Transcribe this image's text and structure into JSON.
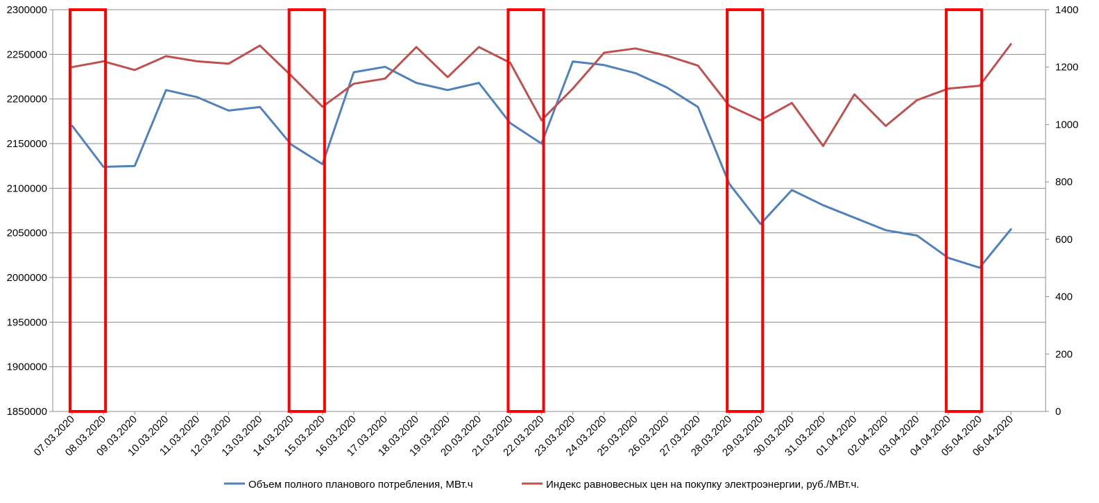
{
  "chart_data": {
    "type": "line",
    "categories": [
      "07.03.2020",
      "08.03.2020",
      "09.03.2020",
      "10.03.2020",
      "11.03.2020",
      "12.03.2020",
      "13.03.2020",
      "14.03.2020",
      "15.03.2020",
      "16.03.2020",
      "17.03.2020",
      "18.03.2020",
      "19.03.2020",
      "20.03.2020",
      "21.03.2020",
      "22.03.2020",
      "23.03.2020",
      "24.03.2020",
      "25.03.2020",
      "26.03.2020",
      "27.03.2020",
      "28.03.2020",
      "29.03.2020",
      "30.03.2020",
      "31.03.2020",
      "01.04.2020",
      "02.04.2020",
      "03.04.2020",
      "04.04.2020",
      "05.04.2020",
      "06.04.2020"
    ],
    "series": [
      {
        "name": "Объем полного планового потребления, МВт.ч",
        "axis": "left",
        "color": "#4F81BD",
        "values": [
          2170000,
          2124000,
          2125000,
          2210000,
          2202000,
          2187000,
          2191000,
          2149000,
          2127000,
          2230000,
          2236000,
          2218000,
          2210000,
          2218000,
          2173000,
          2150000,
          2242000,
          2238000,
          2229000,
          2213000,
          2191000,
          2105000,
          2060000,
          2098000,
          2081000,
          2067000,
          2053000,
          2047000,
          2022000,
          2011000,
          2054000
        ]
      },
      {
        "name": "Индекс равновесных цен на покупку электроэнергии, руб./МВт.ч.",
        "axis": "right",
        "color": "#C0504D",
        "values": [
          1200,
          1220,
          1190,
          1238,
          1220,
          1212,
          1275,
          1170,
          1062,
          1142,
          1160,
          1270,
          1165,
          1270,
          1215,
          1015,
          1125,
          1250,
          1265,
          1240,
          1205,
          1065,
          1015,
          1075,
          925,
          1105,
          995,
          1085,
          1125,
          1135,
          1280
        ]
      }
    ],
    "left_axis": {
      "min": 1850000,
      "max": 2300000,
      "ticks": [
        "1850000",
        "1900000",
        "1950000",
        "2000000",
        "2050000",
        "2100000",
        "2150000",
        "2200000",
        "2250000",
        "2300000"
      ]
    },
    "right_axis": {
      "min": 0,
      "max": 1400,
      "ticks": [
        "0",
        "200",
        "400",
        "600",
        "800",
        "1000",
        "1200",
        "1400"
      ]
    },
    "highlighted_categories": [
      [
        "07.03.2020",
        "08.03.2020"
      ],
      [
        "14.03.2020",
        "15.03.2020"
      ],
      [
        "21.03.2020",
        "22.03.2020"
      ],
      [
        "28.03.2020",
        "29.03.2020"
      ],
      [
        "04.04.2020",
        "05.04.2020"
      ]
    ],
    "highlight_color": "#FF0000",
    "grid": "horizontal",
    "legend_position": "bottom"
  }
}
